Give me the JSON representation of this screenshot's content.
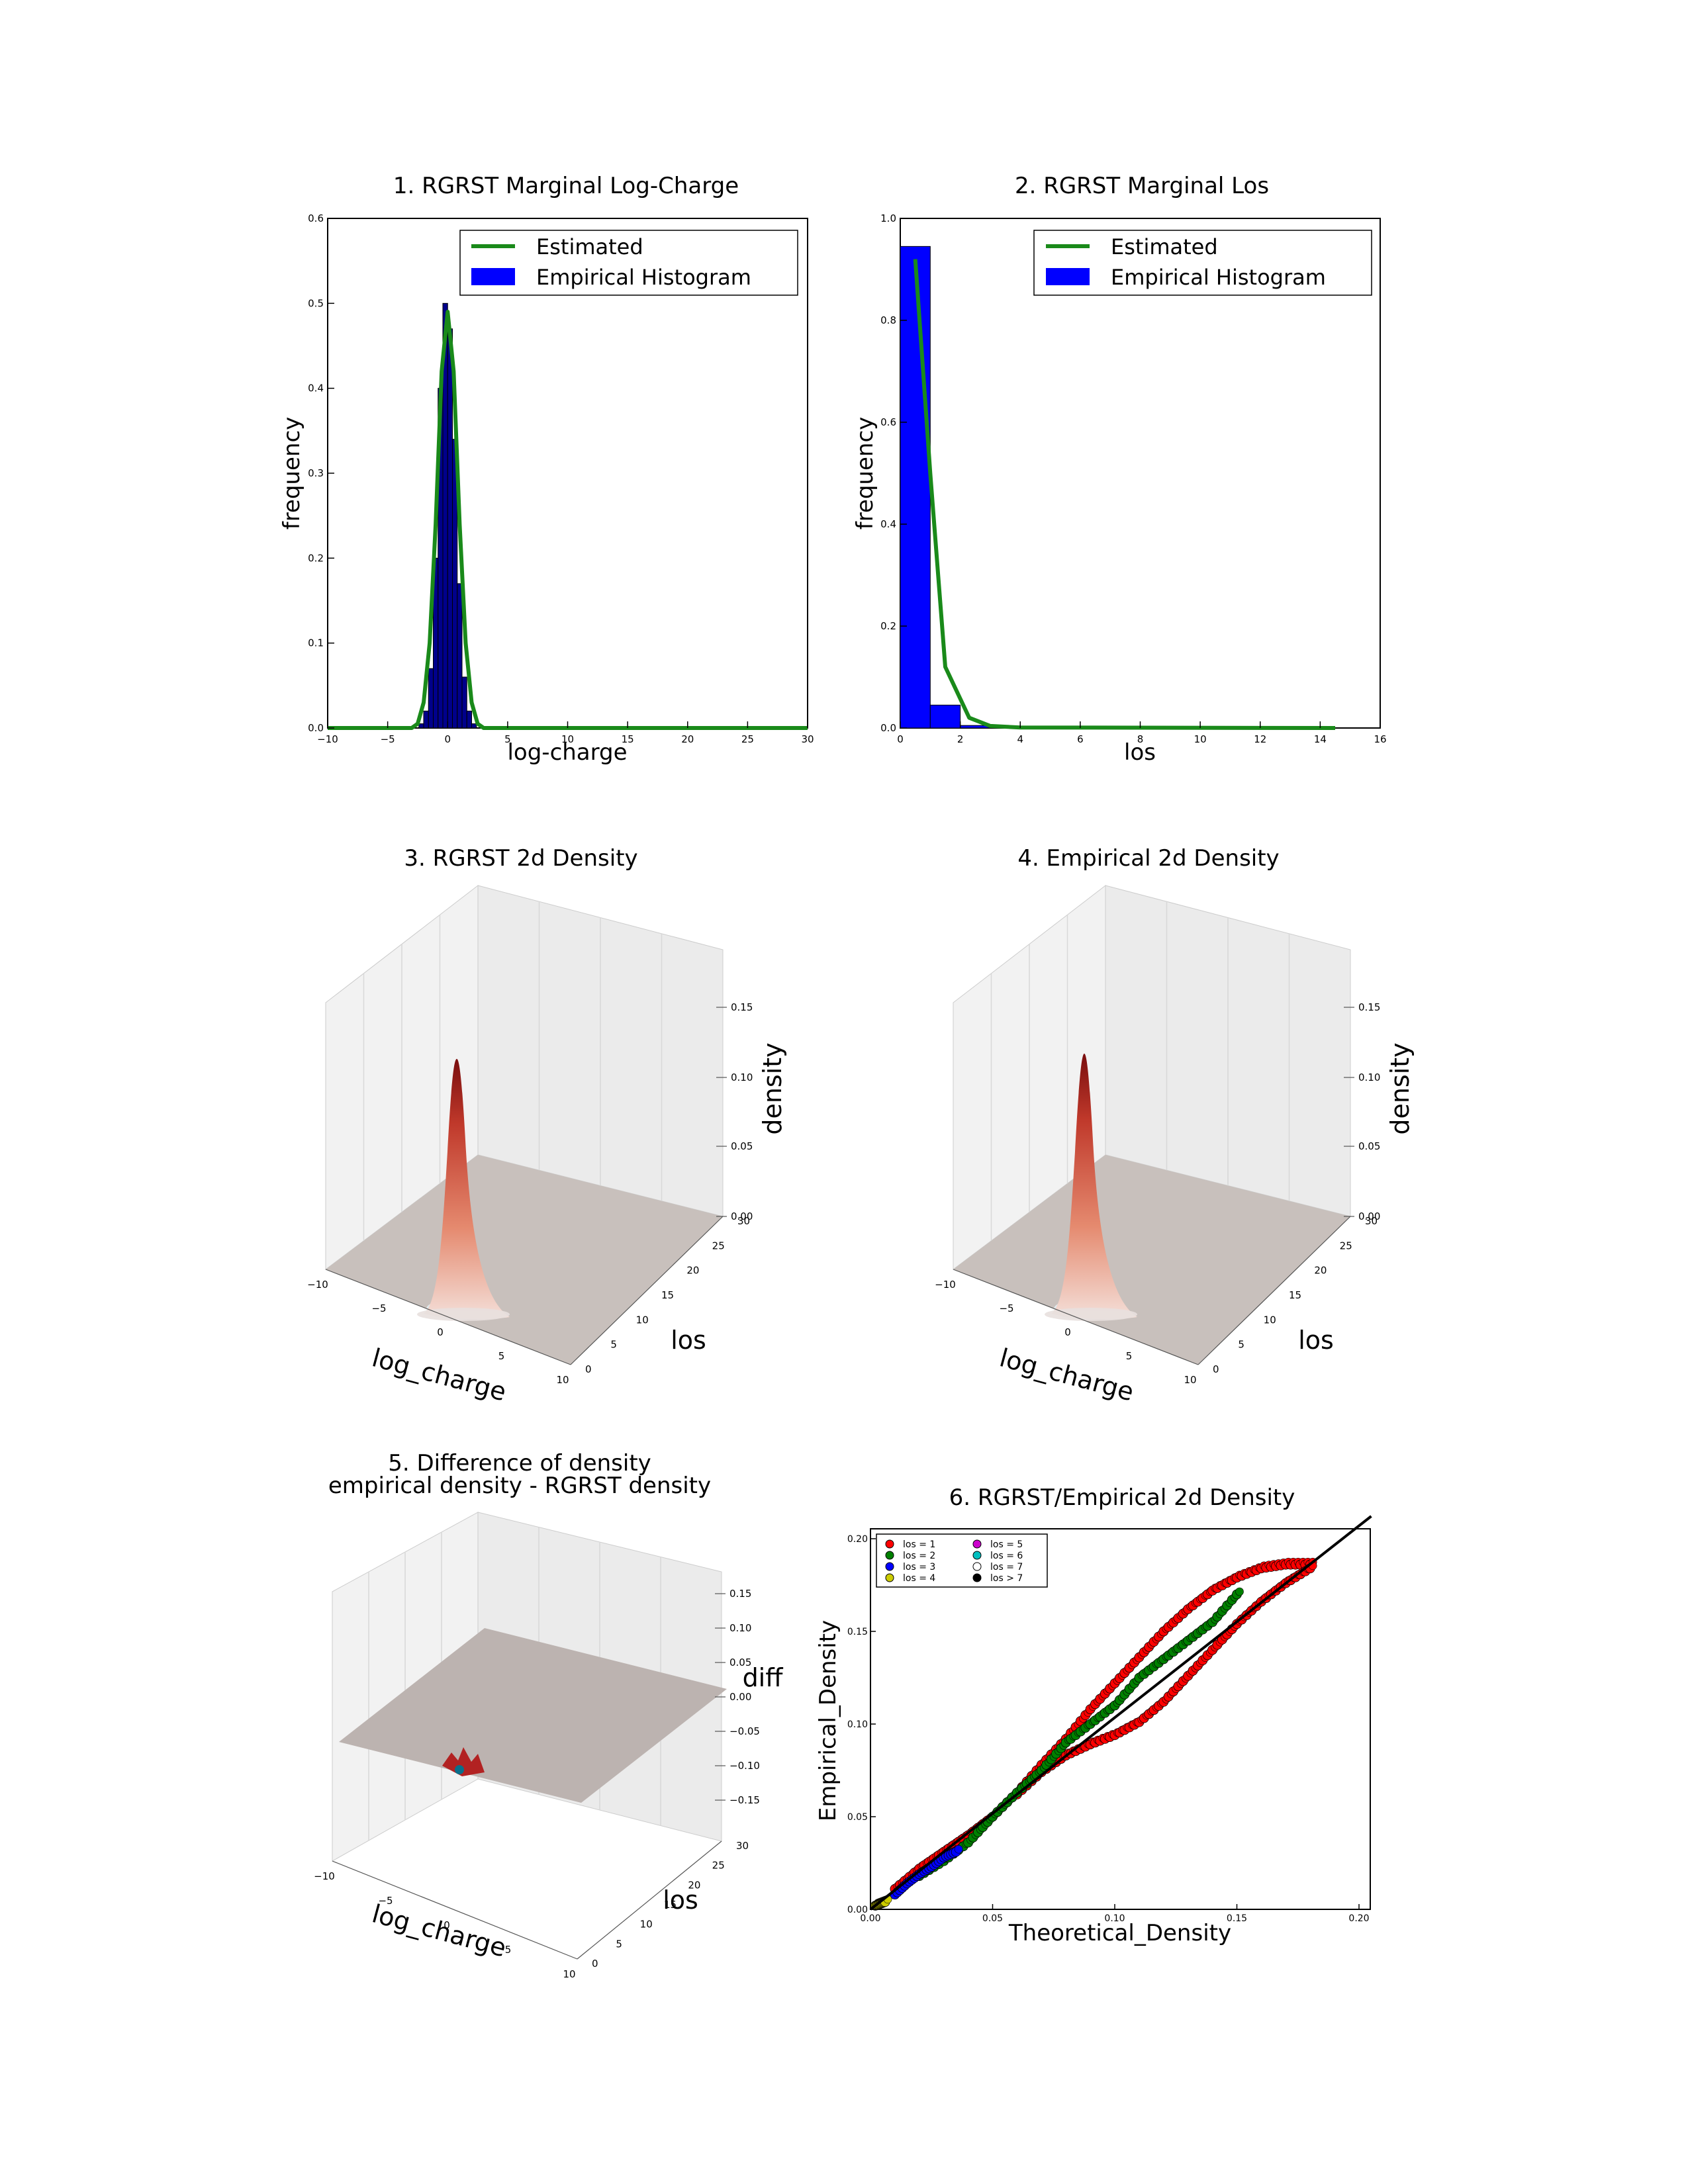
{
  "chart_data": [
    {
      "type": "bar",
      "title": "1. RGRST Marginal Log-Charge",
      "xlabel": "log-charge",
      "ylabel": "frequency",
      "xlim": [
        -10,
        30
      ],
      "ylim": [
        0,
        0.6
      ],
      "xticks": [
        "−10",
        "−5",
        "0",
        "5",
        "10",
        "15",
        "20",
        "25",
        "30"
      ],
      "yticks": [
        "0.0",
        "0.1",
        "0.2",
        "0.3",
        "0.4",
        "0.5",
        "0.6"
      ],
      "legend": {
        "placement": "top-right",
        "entries": [
          "Estimated",
          "Empirical Histogram"
        ]
      },
      "histogram": {
        "name": "Empirical Histogram",
        "color": "#0000ff",
        "bins_x": [
          -2.2,
          -1.8,
          -1.4,
          -1.0,
          -0.6,
          -0.2,
          0.2,
          0.6,
          1.0,
          1.4,
          1.8,
          2.2
        ],
        "values": [
          0.005,
          0.02,
          0.07,
          0.2,
          0.4,
          0.5,
          0.47,
          0.34,
          0.17,
          0.06,
          0.02,
          0.005
        ]
      },
      "series": [
        {
          "name": "Estimated",
          "color": "#1a8a1a",
          "x": [
            -10,
            -3,
            -2.5,
            -2,
            -1.5,
            -1,
            -0.5,
            0,
            0.5,
            1,
            1.5,
            2,
            2.5,
            3,
            30
          ],
          "y": [
            0,
            0,
            0.005,
            0.03,
            0.1,
            0.24,
            0.42,
            0.49,
            0.42,
            0.24,
            0.1,
            0.03,
            0.005,
            0,
            0
          ]
        }
      ]
    },
    {
      "type": "bar",
      "title": "2. RGRST Marginal Los",
      "xlabel": "los",
      "ylabel": "frequency",
      "xlim": [
        0,
        16
      ],
      "ylim": [
        0,
        1.0
      ],
      "xticks": [
        "0",
        "2",
        "4",
        "6",
        "8",
        "10",
        "12",
        "14",
        "16"
      ],
      "yticks": [
        "0.0",
        "0.2",
        "0.4",
        "0.6",
        "0.8",
        "1.0"
      ],
      "legend": {
        "placement": "top-right",
        "entries": [
          "Estimated",
          "Empirical Histogram"
        ]
      },
      "histogram": {
        "name": "Empirical Histogram",
        "color": "#0000ff",
        "bins": [
          [
            0,
            1,
            0.945
          ],
          [
            1,
            2,
            0.045
          ],
          [
            2,
            3,
            0.005
          ]
        ]
      },
      "series": [
        {
          "name": "Estimated",
          "color": "#1a8a1a",
          "x": [
            0.5,
            1.0,
            1.5,
            2.3,
            3.0,
            4.0,
            14.5
          ],
          "y": [
            0.92,
            0.5,
            0.12,
            0.02,
            0.004,
            0.001,
            0
          ]
        }
      ]
    },
    {
      "type": "surface",
      "title": "3. RGRST 2d Density",
      "xlabel": "log_charge",
      "ylabel": "los",
      "zlabel": "density",
      "xticks": [
        "−10",
        "−5",
        "0",
        "5",
        "10"
      ],
      "yticks": [
        "0",
        "5",
        "10",
        "15",
        "20",
        "25",
        "30"
      ],
      "zticks": [
        "0.00",
        "0.05",
        "0.10",
        "0.15"
      ],
      "peak": 0.12
    },
    {
      "type": "surface",
      "title": "4. Empirical 2d Density",
      "xlabel": "log_charge",
      "ylabel": "los",
      "zlabel": "density",
      "xticks": [
        "−10",
        "−5",
        "0",
        "5",
        "10"
      ],
      "yticks": [
        "0",
        "5",
        "10",
        "15",
        "20",
        "25",
        "30"
      ],
      "zticks": [
        "0.00",
        "0.05",
        "0.10",
        "0.15"
      ],
      "peak": 0.12
    },
    {
      "type": "surface",
      "title": "5. Difference of density",
      "subtitle": "empirical density - RGRST density",
      "xlabel": "log_charge",
      "ylabel": "los",
      "zlabel": "diff",
      "xticks": [
        "−10",
        "−5",
        "0",
        "5",
        "10"
      ],
      "yticks": [
        "0",
        "5",
        "10",
        "15",
        "20",
        "25",
        "30"
      ],
      "zticks": [
        "0.15",
        "0.10",
        "0.05",
        "0.00",
        "−0.05",
        "−0.10",
        "−0.15"
      ]
    },
    {
      "type": "scatter",
      "title": "6. RGRST/Empirical 2d Density",
      "xlabel": "Theoretical_Density",
      "ylabel": "Empirical_Density",
      "xlim": [
        0,
        0.2
      ],
      "ylim": [
        0,
        0.2
      ],
      "xticks": [
        "0.00",
        "0.05",
        "0.10",
        "0.15",
        "0.20"
      ],
      "yticks": [
        "0.00",
        "0.05",
        "0.10",
        "0.15",
        "0.20"
      ],
      "legend": {
        "placement": "top-left",
        "entries": [
          {
            "label": "los = 1",
            "color": "#ff0000"
          },
          {
            "label": "los = 2",
            "color": "#008000"
          },
          {
            "label": "los = 3",
            "color": "#0000ff"
          },
          {
            "label": "los = 4",
            "color": "#cccc00"
          },
          {
            "label": "los = 5",
            "color": "#cc00cc"
          },
          {
            "label": "los = 6",
            "color": "#00bfbf"
          },
          {
            "label": "los = 7",
            "color": "#ffffff"
          },
          {
            "label": "los > 7",
            "color": "#000000"
          }
        ]
      },
      "reference_line": {
        "x": [
          0,
          0.205
        ],
        "y": [
          0,
          0.205
        ]
      },
      "point_sets": [
        {
          "name": "los = 1 upper",
          "color": "#ff0000",
          "x": [
            0.01,
            0.02,
            0.03,
            0.04,
            0.05,
            0.06,
            0.07,
            0.08,
            0.09,
            0.1,
            0.11,
            0.12,
            0.13,
            0.14,
            0.15,
            0.16,
            0.17,
            0.18
          ],
          "y": [
            0.011,
            0.022,
            0.031,
            0.04,
            0.05,
            0.063,
            0.078,
            0.092,
            0.108,
            0.122,
            0.136,
            0.15,
            0.162,
            0.172,
            0.179,
            0.184,
            0.186,
            0.186
          ]
        },
        {
          "name": "los = 1 lower",
          "color": "#ff0000",
          "x": [
            0.06,
            0.07,
            0.08,
            0.09,
            0.1,
            0.11,
            0.12,
            0.13,
            0.14,
            0.15,
            0.16,
            0.17,
            0.18
          ],
          "y": [
            0.062,
            0.074,
            0.083,
            0.089,
            0.094,
            0.101,
            0.112,
            0.126,
            0.14,
            0.154,
            0.166,
            0.176,
            0.184
          ]
        },
        {
          "name": "los = 2",
          "color": "#008000",
          "x": [
            0.02,
            0.03,
            0.04,
            0.05,
            0.06,
            0.07,
            0.08,
            0.09,
            0.1,
            0.11,
            0.12,
            0.13,
            0.14,
            0.15
          ],
          "y": [
            0.018,
            0.026,
            0.036,
            0.05,
            0.063,
            0.075,
            0.09,
            0.1,
            0.11,
            0.125,
            0.135,
            0.145,
            0.155,
            0.17
          ]
        },
        {
          "name": "los = 3",
          "color": "#0000ff",
          "x": [
            0.01,
            0.015,
            0.02,
            0.025,
            0.03,
            0.035
          ],
          "y": [
            0.008,
            0.014,
            0.019,
            0.023,
            0.028,
            0.031
          ]
        },
        {
          "name": "los = 4",
          "color": "#cccc00",
          "x": [
            0.002,
            0.004,
            0.006
          ],
          "y": [
            0.002,
            0.003,
            0.004
          ]
        }
      ]
    }
  ]
}
